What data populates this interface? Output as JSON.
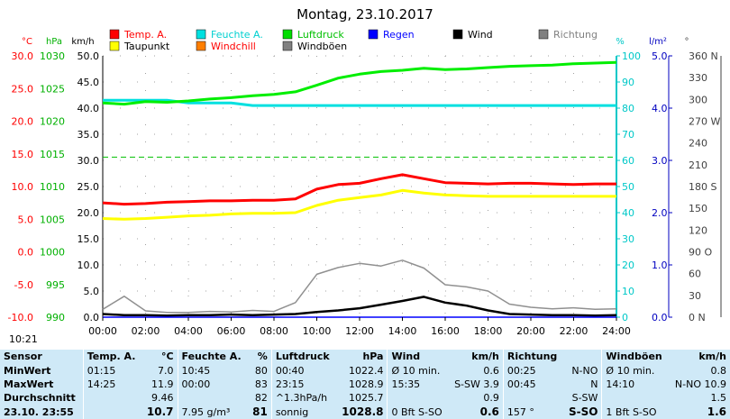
{
  "title": "Montag, 23.10.2017",
  "timestamp": "10:21",
  "legend": [
    {
      "label": "Temp. A.",
      "color": "#ff0000",
      "text_color": "#ff0000"
    },
    {
      "label": "Feuchte A.",
      "color": "#00e0e0",
      "text_color": "#00d0d0"
    },
    {
      "label": "Luftdruck",
      "color": "#00dd00",
      "text_color": "#00c000"
    },
    {
      "label": "Regen",
      "color": "#0000ff",
      "text_color": "#0000ff"
    },
    {
      "label": "Wind",
      "color": "#000000",
      "text_color": "#000000"
    },
    {
      "label": "Richtung",
      "color": "#808080",
      "text_color": "#808080"
    },
    {
      "label": "Taupunkt",
      "color": "#ffff00",
      "text_color": "#000000"
    },
    {
      "label": "Windchill",
      "color": "#ff7f00",
      "text_color": "#ff0000"
    },
    {
      "label": "Windböen",
      "color": "#808080",
      "text_color": "#000000"
    }
  ],
  "axes": {
    "temp": {
      "unit": "°C",
      "ticks": [
        "30.0",
        "25.0",
        "20.0",
        "15.0",
        "10.0",
        "5.0",
        "0.0",
        "-5.0",
        "-10.0"
      ],
      "color": "#ff0000"
    },
    "pressure": {
      "unit": "hPa",
      "ticks": [
        "1030",
        "1025",
        "1020",
        "1015",
        "1010",
        "1005",
        "1000",
        "995",
        "990"
      ],
      "color": "#00b000"
    },
    "wind": {
      "unit": "km/h",
      "ticks": [
        "50.0",
        "45.0",
        "40.0",
        "35.0",
        "30.0",
        "25.0",
        "20.0",
        "15.0",
        "10.0",
        "5.0",
        "0.0"
      ],
      "color": "#000000"
    },
    "humidity": {
      "unit": "%",
      "ticks": [
        "100",
        "90",
        "80",
        "70",
        "60",
        "50",
        "40",
        "30",
        "20",
        "10",
        "0"
      ],
      "color": "#00c8c8"
    },
    "rain": {
      "unit": "l/m²",
      "ticks": [
        "5.0",
        "4.0",
        "3.0",
        "2.0",
        "1.0",
        "0.0"
      ],
      "color": "#0000c0"
    },
    "direction": {
      "unit": "°",
      "ticks": [
        "360 N",
        "330",
        "300",
        "270 W",
        "240",
        "210",
        "180 S",
        "150",
        "120",
        "90 O",
        "60",
        "30",
        "0 N"
      ],
      "color": "#404040"
    },
    "x_ticks": [
      "00:00",
      "02:00",
      "04:00",
      "06:00",
      "08:00",
      "10:00",
      "12:00",
      "14:00",
      "16:00",
      "18:00",
      "20:00",
      "22:00",
      "24:00"
    ]
  },
  "chart_data": {
    "type": "line",
    "xlabel": "",
    "x_hours": [
      0,
      1,
      2,
      3,
      4,
      5,
      6,
      7,
      8,
      9,
      10,
      11,
      12,
      13,
      14,
      15,
      16,
      17,
      18,
      19,
      20,
      21,
      22,
      23,
      24
    ],
    "series": [
      {
        "name": "Temp. A.",
        "axis": "temp",
        "values": [
          7.5,
          7.3,
          7.4,
          7.6,
          7.7,
          7.8,
          7.8,
          7.9,
          7.9,
          8.1,
          9.6,
          10.3,
          10.5,
          11.2,
          11.8,
          11.2,
          10.6,
          10.5,
          10.4,
          10.5,
          10.5,
          10.4,
          10.3,
          10.4,
          10.4
        ]
      },
      {
        "name": "Taupunkt",
        "axis": "temp",
        "values": [
          5.1,
          5.0,
          5.1,
          5.3,
          5.5,
          5.6,
          5.8,
          5.9,
          5.9,
          6.0,
          7.1,
          7.9,
          8.3,
          8.7,
          9.4,
          9.0,
          8.7,
          8.6,
          8.5,
          8.5,
          8.5,
          8.5,
          8.5,
          8.5,
          8.5
        ]
      },
      {
        "name": "Luftdruck",
        "axis": "pressure",
        "values": [
          1022.8,
          1022.6,
          1023.0,
          1022.9,
          1023.1,
          1023.4,
          1023.6,
          1023.9,
          1024.1,
          1024.5,
          1025.5,
          1026.6,
          1027.2,
          1027.6,
          1027.8,
          1028.1,
          1027.9,
          1028.0,
          1028.2,
          1028.4,
          1028.5,
          1028.6,
          1028.8,
          1028.9,
          1029.0
        ]
      },
      {
        "name": "Feuchte A.",
        "axis": "humidity",
        "values": [
          83,
          83,
          83,
          83,
          82,
          82,
          82,
          81,
          81,
          81,
          81,
          81,
          81,
          81,
          81,
          81,
          81,
          81,
          81,
          81,
          81,
          81,
          81,
          81,
          81
        ]
      },
      {
        "name": "Wind",
        "axis": "wind",
        "values": [
          0.6,
          0.4,
          0.4,
          0.3,
          0.4,
          0.4,
          0.5,
          0.4,
          0.5,
          0.6,
          1.0,
          1.3,
          1.7,
          2.4,
          3.1,
          3.9,
          2.8,
          2.2,
          1.3,
          0.6,
          0.5,
          0.4,
          0.4,
          0.3,
          0.4
        ]
      },
      {
        "name": "Windböen",
        "axis": "wind",
        "values": [
          1.5,
          4.0,
          1.2,
          0.9,
          0.9,
          1.1,
          1.0,
          1.3,
          1.1,
          2.8,
          8.2,
          9.5,
          10.3,
          9.8,
          10.9,
          9.4,
          6.2,
          5.8,
          5.0,
          2.5,
          1.9,
          1.6,
          1.8,
          1.5,
          1.6
        ]
      },
      {
        "name": "Regen",
        "axis": "rain",
        "values": [
          0,
          0,
          0,
          0,
          0,
          0,
          0,
          0,
          0,
          0,
          0,
          0,
          0,
          0,
          0,
          0,
          0,
          0,
          0,
          0,
          0,
          0,
          0,
          0,
          0
        ]
      }
    ],
    "reference_line": {
      "axis": "temp",
      "value": 14.5,
      "color": "#00c000",
      "style": "dashed"
    }
  },
  "table": {
    "headers": [
      "Sensor",
      "Temp. A.",
      "°C",
      "Feuchte A.",
      "%",
      "Luftdruck",
      "hPa",
      "Wind",
      "km/h",
      "Richtung",
      "",
      "Windböen",
      "km/h"
    ],
    "rows": [
      {
        "label": "MinWert",
        "cells": [
          "01:15",
          "7.0",
          "10:45",
          "80",
          "00:40",
          "1022.4",
          "Ø 10 min.",
          "0.6",
          "00:25",
          "N-NO",
          "Ø 10 min.",
          "0.8"
        ]
      },
      {
        "label": "MaxWert",
        "cells": [
          "14:25",
          "11.9",
          "00:00",
          "83",
          "23:15",
          "1028.9",
          "15:35",
          "S-SW 3.9",
          "00:45",
          "N",
          "14:10",
          "N-NO 10.9"
        ]
      },
      {
        "label": "Durchschnitt",
        "cells": [
          "",
          "9.46",
          "",
          "82",
          "^1.3hPa/h",
          "1025.7",
          "",
          "0.9",
          "",
          "S-SW",
          "",
          "1.5"
        ]
      },
      {
        "label": "23.10. 23:55",
        "cells": [
          "",
          "10.7",
          "7.95 g/m³",
          "81",
          "sonnig",
          "1028.8",
          "0 Bft S-SO",
          "0.6",
          "157 °",
          "S-SO",
          "1 Bft S-SO",
          "1.6"
        ]
      }
    ]
  }
}
